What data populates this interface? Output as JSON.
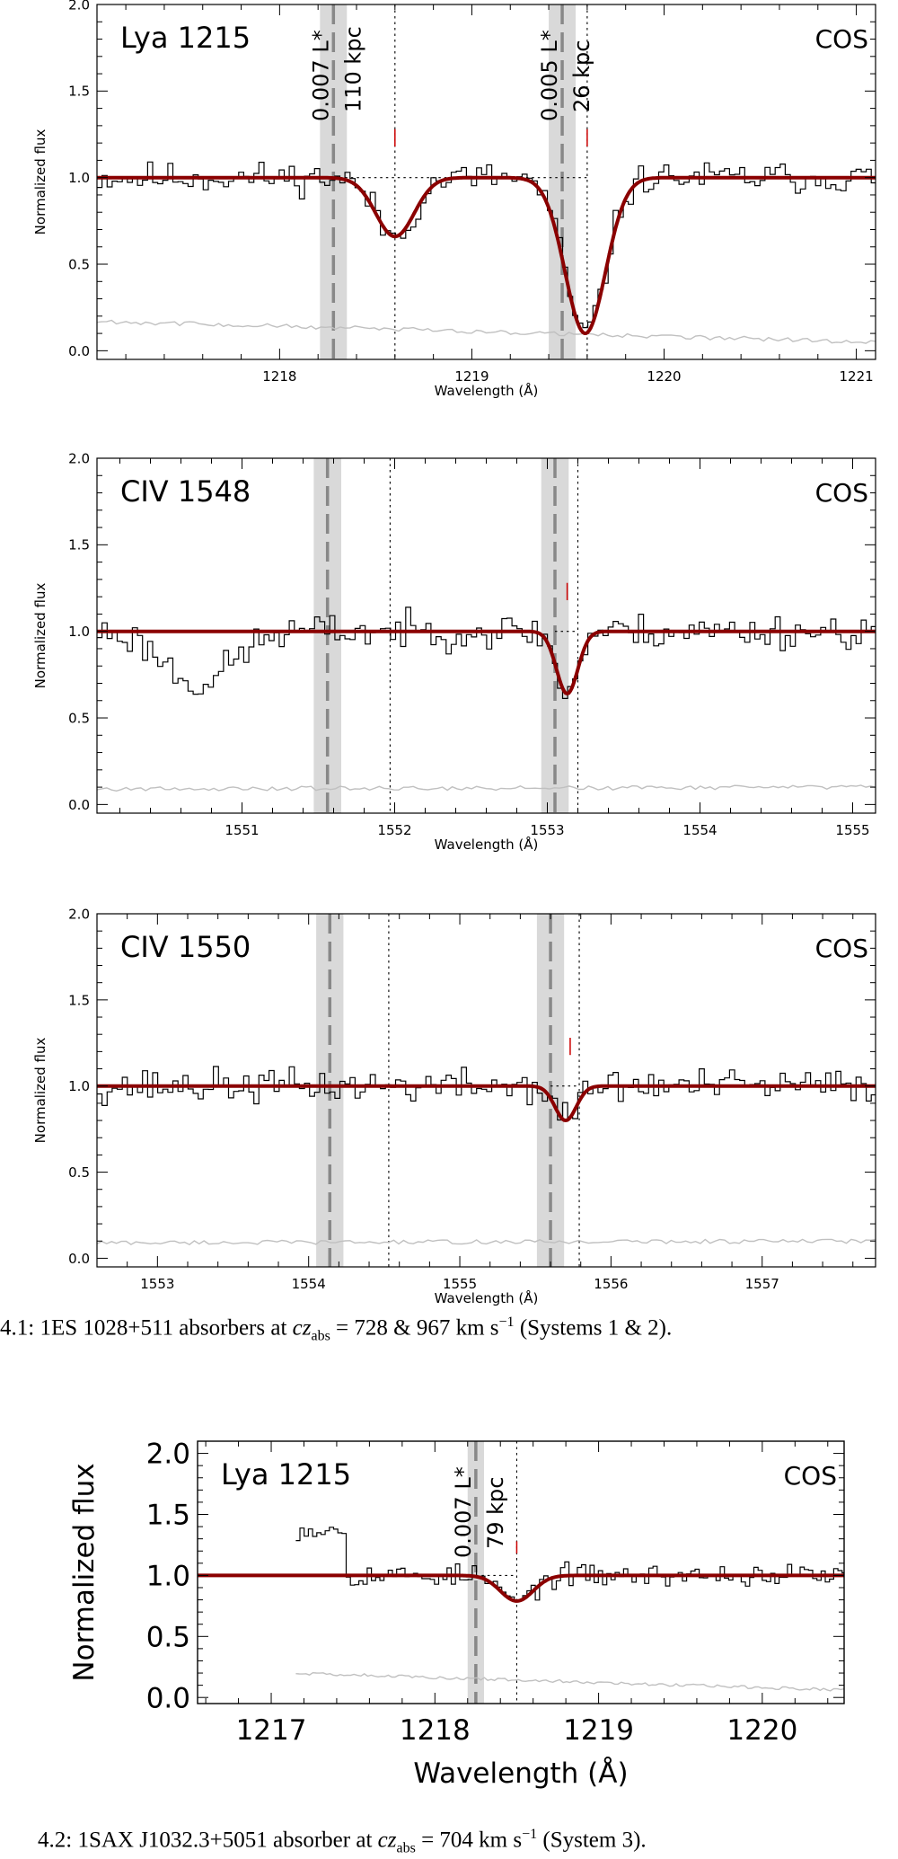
{
  "figure_captions": {
    "fig1": {
      "prefix": "4.1: 1ES 1028+511 absorbers at ",
      "math_var": "cz",
      "math_sub": "abs",
      "math_rest": " = 728 & 967 km s",
      "math_exp": "−1",
      "suffix": " (Systems 1 & 2)."
    },
    "fig2": {
      "prefix": "4.2: 1SAX J1032.3+5051 absorber at ",
      "math_var": "cz",
      "math_sub": "abs",
      "math_rest": " = 704 km s",
      "math_exp": "−1",
      "suffix": " (System 3)."
    }
  },
  "chart_data": [
    {
      "type": "line",
      "id": "panel-lya-1",
      "line_label": "Lya 1215",
      "instrument_label": "COS",
      "xlabel": "Wavelength (Å)",
      "ylabel": "Normalized flux",
      "xlim": [
        1217.05,
        1221.1
      ],
      "ylim": [
        -0.05,
        2.0
      ],
      "xticks": [
        1218,
        1219,
        1220,
        1221
      ],
      "yticks": [
        "0.0",
        "0.5",
        "1.0",
        "1.5",
        "2.0"
      ],
      "galaxies": [
        {
          "wavelength": 1218.28,
          "band_halfwidth": 0.07,
          "label_lum": "0.007 L*",
          "label_dist": "110 kpc"
        },
        {
          "wavelength": 1219.47,
          "band_halfwidth": 0.07,
          "label_lum": "0.005 L*",
          "label_dist": "26 kpc"
        }
      ],
      "absorber_lines": [
        1218.6,
        1219.6
      ],
      "tick_marks": [
        1218.6,
        1219.6
      ],
      "model_components": [
        {
          "center": 1218.6,
          "depth": 0.34,
          "sigma": 0.1
        },
        {
          "center": 1219.59,
          "depth": 0.9,
          "sigma": 0.105
        }
      ],
      "error_level": [
        0.17,
        0.05
      ],
      "noise_amplitude": 0.09,
      "continuum_dotted_range": [
        1218.28,
        1219.6
      ],
      "seed": 11
    },
    {
      "type": "line",
      "id": "panel-civ-1548",
      "line_label": "CIV 1548",
      "instrument_label": "COS",
      "xlabel": "Wavelength (Å)",
      "ylabel": "Normalized flux",
      "xlim": [
        1550.05,
        1555.15
      ],
      "ylim": [
        -0.05,
        2.0
      ],
      "xticks": [
        1551,
        1552,
        1553,
        1554,
        1555
      ],
      "yticks": [
        "0.0",
        "0.5",
        "1.0",
        "1.5",
        "2.0"
      ],
      "galaxies": [
        {
          "wavelength": 1551.56,
          "band_halfwidth": 0.09,
          "label_lum": "",
          "label_dist": ""
        },
        {
          "wavelength": 1553.05,
          "band_halfwidth": 0.09,
          "label_lum": "",
          "label_dist": ""
        }
      ],
      "absorber_lines": [
        1551.97,
        1553.2
      ],
      "tick_marks": [
        1553.13
      ],
      "model_components": [
        {
          "center": 1553.13,
          "depth": 0.36,
          "sigma": 0.07
        }
      ],
      "broad_dip": {
        "center": 1550.7,
        "depth": 0.3,
        "sigma": 0.22
      },
      "error_level": [
        0.09,
        0.1
      ],
      "noise_amplitude": 0.1,
      "continuum_dotted_range": [
        1553.05,
        1553.2
      ],
      "seed": 23
    },
    {
      "type": "line",
      "id": "panel-civ-1550",
      "line_label": "CIV 1550",
      "instrument_label": "COS",
      "xlabel": "Wavelength (Å)",
      "ylabel": "Normalized flux",
      "xlim": [
        1552.6,
        1557.75
      ],
      "ylim": [
        -0.05,
        2.0
      ],
      "xticks": [
        1553,
        1554,
        1555,
        1556,
        1557
      ],
      "yticks": [
        "0.0",
        "0.5",
        "1.0",
        "1.5",
        "2.0"
      ],
      "galaxies": [
        {
          "wavelength": 1554.14,
          "band_halfwidth": 0.09,
          "label_lum": "",
          "label_dist": ""
        },
        {
          "wavelength": 1555.6,
          "band_halfwidth": 0.09,
          "label_lum": "",
          "label_dist": ""
        }
      ],
      "absorber_lines": [
        1554.53,
        1555.79
      ],
      "tick_marks": [
        1555.73
      ],
      "model_components": [
        {
          "center": 1555.7,
          "depth": 0.2,
          "sigma": 0.07
        }
      ],
      "error_level": [
        0.09,
        0.1
      ],
      "noise_amplitude": 0.1,
      "continuum_dotted_range": [
        1555.6,
        1555.79
      ],
      "seed": 37
    },
    {
      "type": "line",
      "id": "panel-lya-2",
      "line_label": "Lya 1215",
      "instrument_label": "COS",
      "xlabel": "Wavelength (Å)",
      "ylabel": "Normalized flux",
      "xlim": [
        1216.55,
        1220.5
      ],
      "ylim": [
        -0.05,
        2.1
      ],
      "xticks": [
        1217,
        1218,
        1219,
        1220
      ],
      "yticks": [
        "0.0",
        "0.5",
        "1.0",
        "1.5",
        "2.0"
      ],
      "data_start": 1217.15,
      "galaxies": [
        {
          "wavelength": 1218.25,
          "band_halfwidth": 0.05,
          "label_lum": "0.007 L*",
          "label_dist": "79 kpc"
        }
      ],
      "absorber_lines": [
        1218.5
      ],
      "tick_marks": [
        1218.5
      ],
      "model_components": [
        {
          "center": 1218.5,
          "depth": 0.21,
          "sigma": 0.1
        }
      ],
      "early_excess": {
        "end": 1217.45,
        "level": 1.38
      },
      "error_level": [
        0.2,
        0.06
      ],
      "noise_amplitude": 0.09,
      "continuum_dotted_range": [
        1218.25,
        1218.5
      ],
      "seed": 53
    }
  ]
}
